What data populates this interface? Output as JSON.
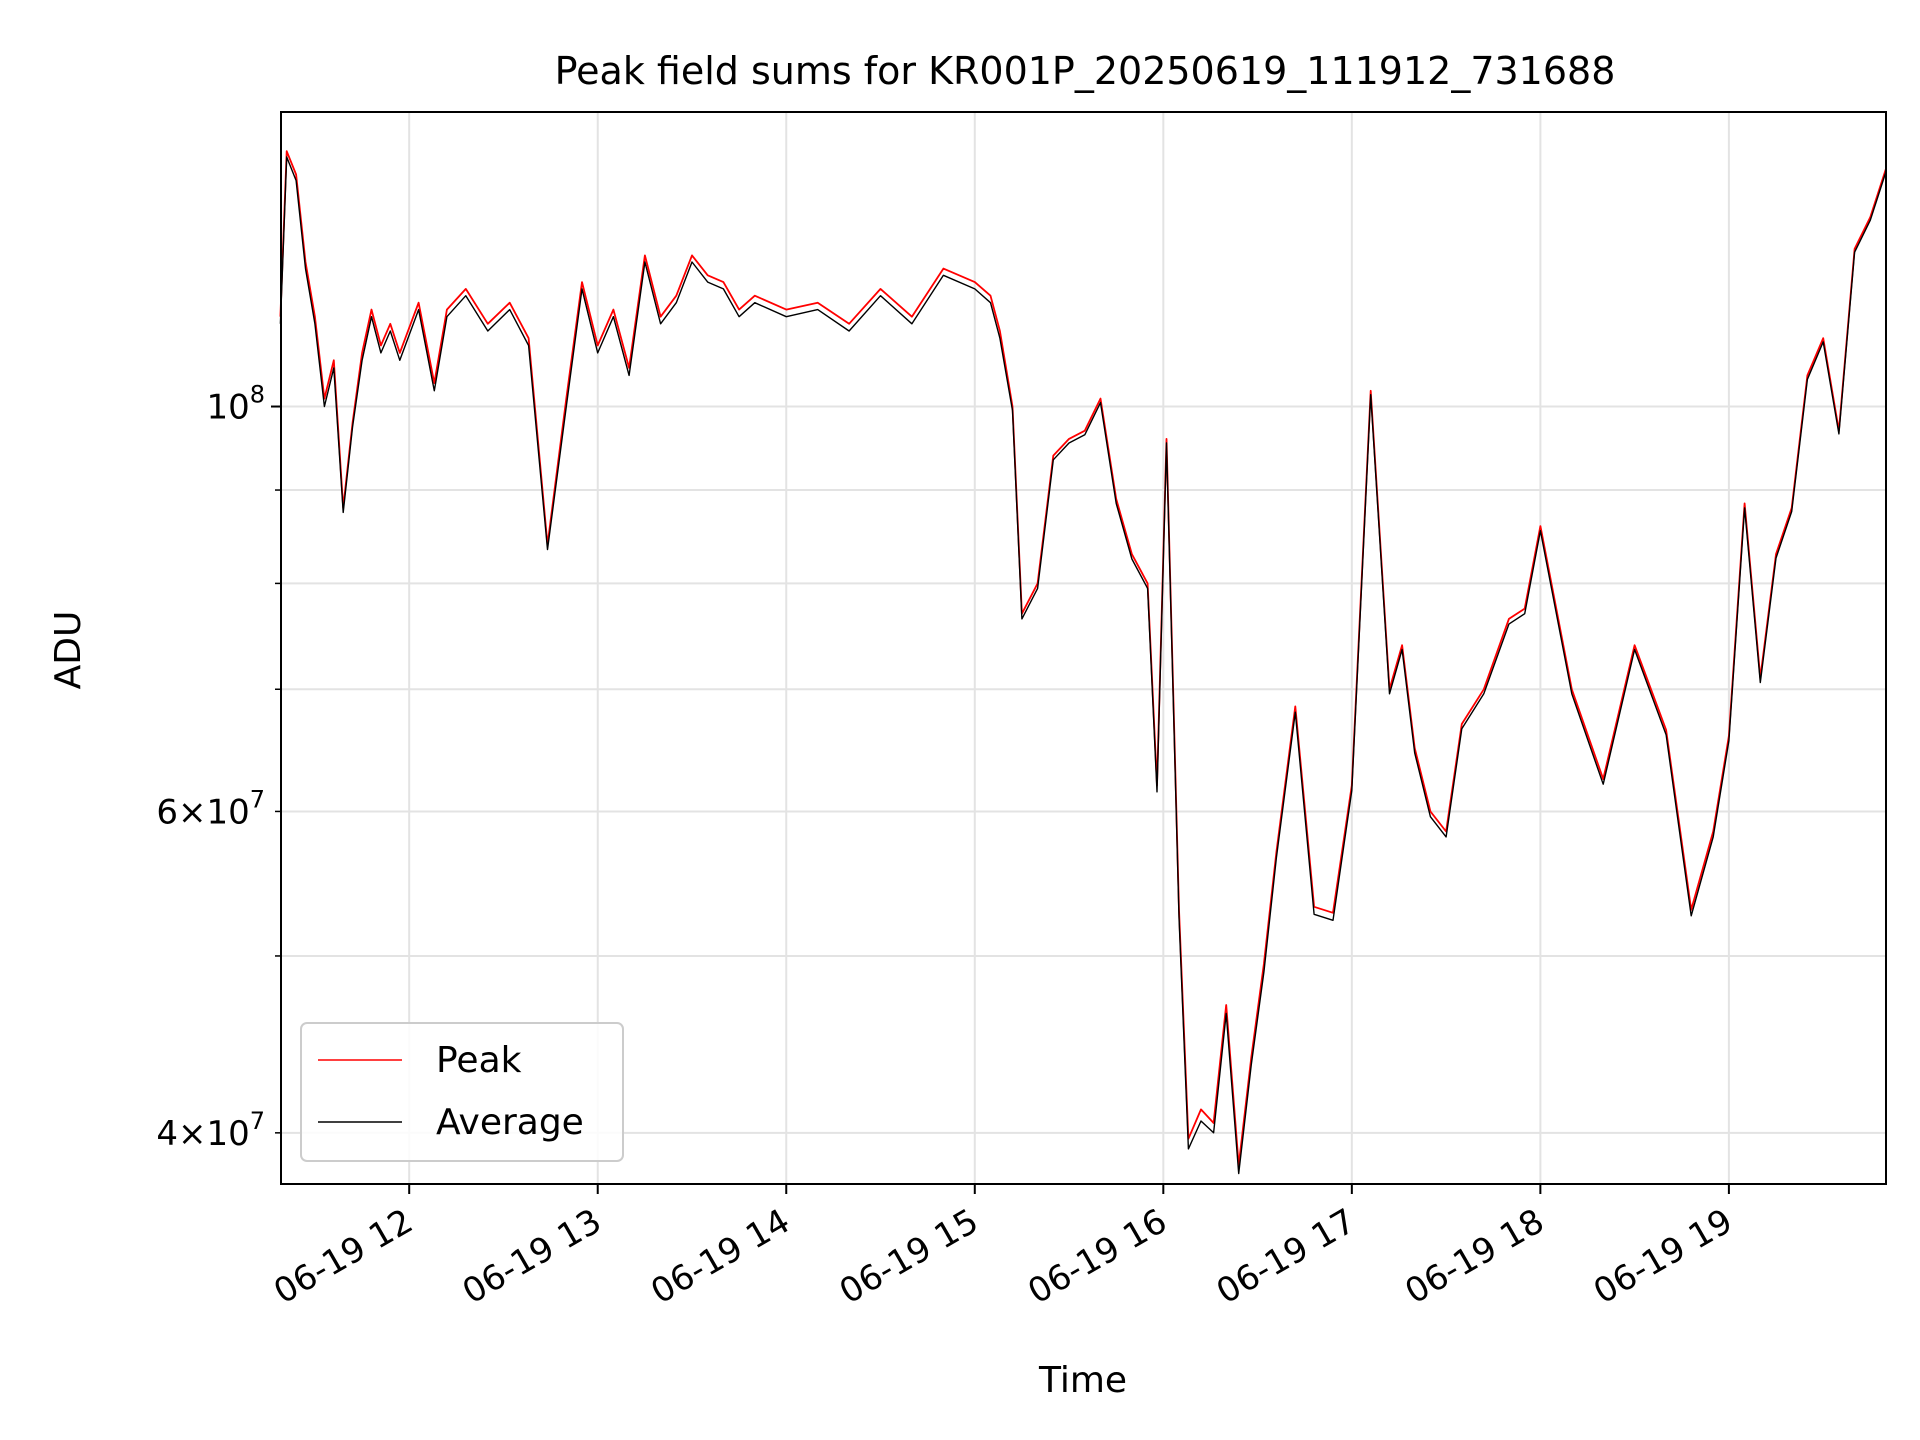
{
  "chart_data": {
    "type": "line",
    "title": "Peak field sums for KR001P_20250619_111912_731688",
    "xlabel": "Time",
    "ylabel": "ADU",
    "yscale": "log",
    "ylim": [
      37500000,
      145000000
    ],
    "xlim": [
      "2025-06-19T11:19:12",
      "2025-06-19T19:50:00"
    ],
    "grid": true,
    "legend_position": "lower-left",
    "x_ticks": [
      "06-19 12",
      "06-19 13",
      "06-19 14",
      "06-19 15",
      "06-19 16",
      "06-19 17",
      "06-19 18",
      "06-19 19"
    ],
    "x_tick_times": [
      "2025-06-19T12:00",
      "2025-06-19T13:00",
      "2025-06-19T14:00",
      "2025-06-19T15:00",
      "2025-06-19T16:00",
      "2025-06-19T17:00",
      "2025-06-19T18:00",
      "2025-06-19T19:00"
    ],
    "y_ticks_major": [
      {
        "value": 100000000,
        "mantissa": "",
        "exponent": "8"
      }
    ],
    "y_ticks_minor": [
      {
        "value": 40000000,
        "mantissa": "4",
        "exponent": "7"
      },
      {
        "value": 60000000,
        "mantissa": "6",
        "exponent": "7"
      }
    ],
    "y_gridlines": [
      40000000,
      50000000,
      60000000,
      70000000,
      80000000,
      90000000,
      100000000
    ],
    "x": [
      "2025-06-19T11:19",
      "2025-06-19T11:21",
      "2025-06-19T11:24",
      "2025-06-19T11:27",
      "2025-06-19T11:30",
      "2025-06-19T11:33",
      "2025-06-19T11:36",
      "2025-06-19T11:39",
      "2025-06-19T11:42",
      "2025-06-19T11:45",
      "2025-06-19T11:48",
      "2025-06-19T11:51",
      "2025-06-19T11:54",
      "2025-06-19T11:57",
      "2025-06-19T12:03",
      "2025-06-19T12:08",
      "2025-06-19T12:12",
      "2025-06-19T12:18",
      "2025-06-19T12:25",
      "2025-06-19T12:32",
      "2025-06-19T12:38",
      "2025-06-19T12:44",
      "2025-06-19T12:50",
      "2025-06-19T12:55",
      "2025-06-19T13:00",
      "2025-06-19T13:05",
      "2025-06-19T13:10",
      "2025-06-19T13:15",
      "2025-06-19T13:20",
      "2025-06-19T13:25",
      "2025-06-19T13:30",
      "2025-06-19T13:35",
      "2025-06-19T13:40",
      "2025-06-19T13:45",
      "2025-06-19T13:50",
      "2025-06-19T14:00",
      "2025-06-19T14:10",
      "2025-06-19T14:20",
      "2025-06-19T14:30",
      "2025-06-19T14:40",
      "2025-06-19T14:50",
      "2025-06-19T15:00",
      "2025-06-19T15:05",
      "2025-06-19T15:08",
      "2025-06-19T15:12",
      "2025-06-19T15:15",
      "2025-06-19T15:20",
      "2025-06-19T15:25",
      "2025-06-19T15:30",
      "2025-06-19T15:35",
      "2025-06-19T15:40",
      "2025-06-19T15:45",
      "2025-06-19T15:50",
      "2025-06-19T15:55",
      "2025-06-19T15:58",
      "2025-06-19T16:01",
      "2025-06-19T16:05",
      "2025-06-19T16:08",
      "2025-06-19T16:12",
      "2025-06-19T16:16",
      "2025-06-19T16:20",
      "2025-06-19T16:24",
      "2025-06-19T16:28",
      "2025-06-19T16:32",
      "2025-06-19T16:36",
      "2025-06-19T16:42",
      "2025-06-19T16:48",
      "2025-06-19T16:54",
      "2025-06-19T17:00",
      "2025-06-19T17:06",
      "2025-06-19T17:12",
      "2025-06-19T17:16",
      "2025-06-19T17:20",
      "2025-06-19T17:25",
      "2025-06-19T17:30",
      "2025-06-19T17:35",
      "2025-06-19T17:42",
      "2025-06-19T17:50",
      "2025-06-19T17:55",
      "2025-06-19T18:00",
      "2025-06-19T18:10",
      "2025-06-19T18:20",
      "2025-06-19T18:30",
      "2025-06-19T18:40",
      "2025-06-19T18:48",
      "2025-06-19T18:55",
      "2025-06-19T19:00",
      "2025-06-19T19:05",
      "2025-06-19T19:10",
      "2025-06-19T19:15",
      "2025-06-19T19:20",
      "2025-06-19T19:25",
      "2025-06-19T19:30",
      "2025-06-19T19:35",
      "2025-06-19T19:40",
      "2025-06-19T19:45",
      "2025-06-19T19:50"
    ],
    "series": [
      {
        "name": "Peak",
        "color": "#ff0000",
        "values": [
          112000000,
          138000000,
          134000000,
          120000000,
          112000000,
          101000000,
          106000000,
          88000000,
          98000000,
          107000000,
          113000000,
          108000000,
          111000000,
          107000000,
          114000000,
          103000000,
          113000000,
          116000000,
          111000000,
          114000000,
          109000000,
          84000000,
          101000000,
          117000000,
          108000000,
          113000000,
          105000000,
          121000000,
          112000000,
          115000000,
          121000000,
          118000000,
          117000000,
          113000000,
          115000000,
          113000000,
          114000000,
          111000000,
          116000000,
          112000000,
          119000000,
          117000000,
          115000000,
          110000000,
          100000000,
          77000000,
          80000000,
          94000000,
          96000000,
          97000000,
          101000000,
          89000000,
          83000000,
          80000000,
          62000000,
          96000000,
          53000000,
          39700000,
          41200000,
          40500000,
          47000000,
          38400000,
          44000000,
          49500000,
          57000000,
          68500000,
          53200000,
          52800000,
          62000000,
          102000000,
          70000000,
          74000000,
          65000000,
          60000000,
          58500000,
          67000000,
          70000000,
          76500000,
          77500000,
          86000000,
          70000000,
          62500000,
          74000000,
          66500000,
          53000000,
          58500000,
          66000000,
          88500000,
          71000000,
          83000000,
          88000000,
          104000000,
          109000000,
          97000000,
          122000000,
          127000000,
          135000000
        ]
      },
      {
        "name": "Average",
        "color": "#000000",
        "values": [
          111000000,
          137000000,
          133000000,
          119000000,
          111000000,
          100000000,
          105000000,
          87500000,
          97500000,
          106000000,
          112000000,
          107000000,
          110000000,
          106000000,
          113000000,
          102000000,
          112000000,
          115000000,
          110000000,
          113000000,
          108000000,
          83500000,
          100000000,
          116000000,
          107000000,
          112000000,
          104000000,
          120000000,
          111000000,
          114000000,
          120000000,
          117000000,
          116000000,
          112000000,
          114000000,
          112000000,
          113000000,
          110000000,
          115000000,
          111000000,
          118000000,
          116000000,
          114000000,
          109000000,
          99500000,
          76500000,
          79500000,
          93500000,
          95500000,
          96500000,
          100500000,
          88500000,
          82500000,
          79500000,
          61500000,
          95500000,
          52500000,
          39200000,
          40600000,
          40000000,
          46500000,
          38000000,
          43600000,
          49000000,
          56600000,
          68000000,
          52700000,
          52300000,
          61600000,
          101500000,
          69600000,
          73600000,
          64600000,
          59600000,
          58100000,
          66600000,
          69600000,
          76000000,
          77000000,
          85500000,
          69600000,
          62100000,
          73600000,
          66100000,
          52600000,
          58100000,
          65600000,
          88000000,
          70600000,
          82600000,
          87600000,
          103500000,
          108500000,
          96600000,
          121500000,
          126500000,
          134500000
        ]
      }
    ]
  }
}
